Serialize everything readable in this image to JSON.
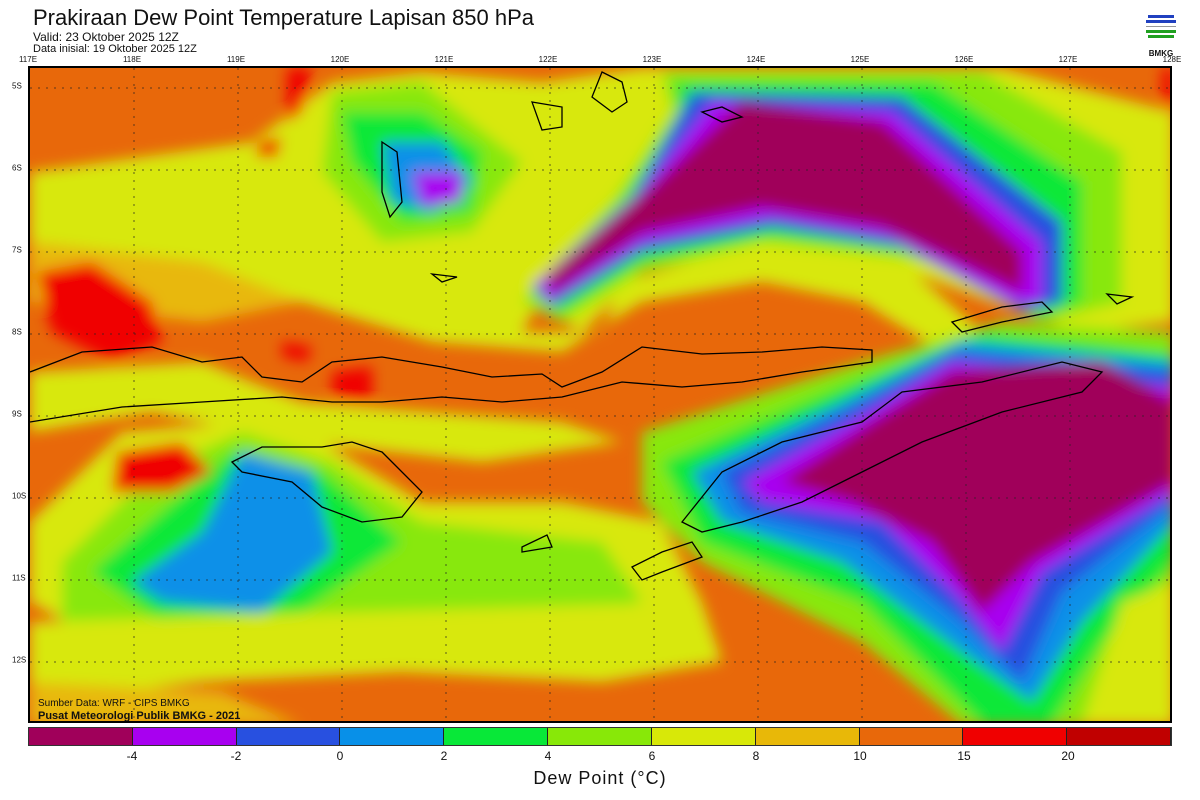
{
  "header": {
    "title": "Prakiraan Dew Point Temperature Lapisan 850 hPa",
    "valid": "Valid: 23 Oktober 2025 12Z",
    "initial": "Data inisial: 19 Oktober 2025 12Z"
  },
  "logo": {
    "text": "BMKG"
  },
  "map": {
    "lon_labels": [
      "117E",
      "118E",
      "119E",
      "120E",
      "121E",
      "122E",
      "123E",
      "124E",
      "125E",
      "126E",
      "127E",
      "128E"
    ],
    "lat_labels": [
      "5S",
      "6S",
      "7S",
      "8S",
      "9S",
      "10S",
      "11S",
      "12S"
    ],
    "source": "Sumber Data: WRF - CIPS BMKG",
    "credit": "Pusat Meteorologi Publik BMKG - 2021"
  },
  "colorbar": {
    "colors": [
      "#a0005a",
      "#a800f0",
      "#2850e0",
      "#0890e8",
      "#08e838",
      "#88e808",
      "#d8e808",
      "#e8b808",
      "#e8680a",
      "#f00000",
      "#c00000"
    ],
    "labels": [
      "-4",
      "-2",
      "0",
      "2",
      "4",
      "6",
      "8",
      "10",
      "15",
      "20"
    ],
    "xlabel": "Dew Point (°C)"
  }
}
